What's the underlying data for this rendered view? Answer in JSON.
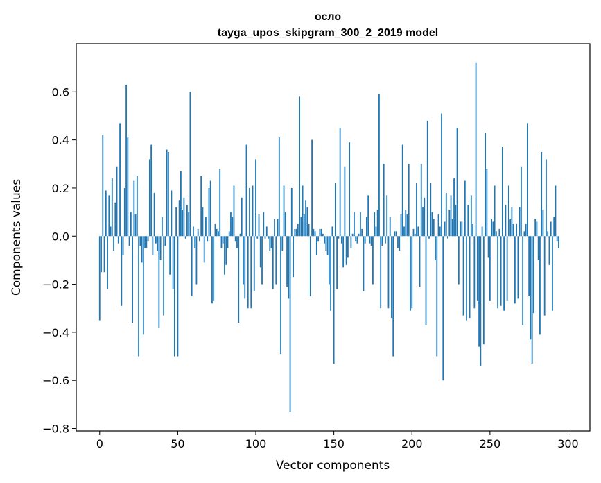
{
  "chart_data": {
    "type": "bar",
    "title_line1": "осло",
    "title_line2": "tayga_upos_skipgram_300_2_2019 model",
    "xlabel": "Vector components",
    "ylabel": "Components values",
    "xlim": [
      -15,
      314
    ],
    "ylim": [
      -0.81,
      0.8
    ],
    "xticks": [
      0,
      50,
      100,
      150,
      200,
      250,
      300
    ],
    "yticks": [
      -0.8,
      -0.6,
      -0.4,
      -0.2,
      0.0,
      0.2,
      0.4,
      0.6
    ],
    "xtick_labels": [
      "0",
      "50",
      "100",
      "150",
      "200",
      "250",
      "300"
    ],
    "ytick_labels": [
      "−0.8",
      "−0.6",
      "−0.4",
      "−0.2",
      "0.0",
      "0.2",
      "0.4",
      "0.6"
    ],
    "bar_color": "#1f77b4",
    "values": [
      -0.35,
      -0.15,
      0.42,
      -0.15,
      0.19,
      -0.22,
      0.17,
      0.04,
      0.24,
      -0.06,
      0.14,
      0.29,
      -0.03,
      0.47,
      -0.29,
      -0.08,
      0.2,
      0.63,
      0.41,
      -0.04,
      0.1,
      -0.36,
      0.23,
      0.09,
      0.25,
      -0.5,
      -0.04,
      -0.11,
      -0.41,
      -0.05,
      -0.05,
      -0.02,
      0.32,
      0.38,
      -0.08,
      0.18,
      -0.03,
      -0.06,
      -0.38,
      -0.1,
      0.08,
      -0.33,
      -0.04,
      0.36,
      0.35,
      -0.16,
      0.19,
      -0.22,
      -0.5,
      0.12,
      -0.5,
      0.15,
      0.27,
      0.11,
      0.16,
      -0.01,
      0.13,
      0.1,
      0.6,
      -0.25,
      0.04,
      -0.05,
      -0.2,
      0.03,
      -0.02,
      0.25,
      0.12,
      -0.11,
      0.08,
      -0.02,
      0.2,
      0.23,
      -0.28,
      -0.27,
      0.05,
      0.03,
      0.02,
      0.28,
      -0.05,
      -0.03,
      -0.16,
      -0.12,
      -0.05,
      0.02,
      0.1,
      0.08,
      0.21,
      -0.02,
      -0.05,
      -0.36,
      0.01,
      0.16,
      -0.2,
      -0.26,
      0.38,
      -0.3,
      0.2,
      -0.3,
      0.21,
      -0.23,
      0.32,
      -0.01,
      0.09,
      -0.13,
      -0.2,
      0.1,
      -0.01,
      0.04,
      -0.01,
      -0.06,
      -0.05,
      -0.22,
      0.07,
      -0.2,
      0.07,
      0.41,
      -0.49,
      -0.06,
      0.21,
      0.1,
      -0.21,
      -0.26,
      -0.73,
      0.2,
      -0.17,
      0.03,
      0.03,
      0.05,
      0.58,
      0.08,
      0.21,
      0.09,
      0.15,
      0.12,
      0.05,
      -0.25,
      0.4,
      0.03,
      0.02,
      -0.08,
      -0.02,
      0.03,
      0.03,
      0.01,
      -0.03,
      -0.06,
      -0.08,
      -0.2,
      -0.31,
      0.04,
      -0.53,
      0.22,
      -0.22,
      -0.01,
      0.45,
      -0.03,
      -0.13,
      0.29,
      -0.12,
      -0.09,
      0.39,
      -0.05,
      0.01,
      0.1,
      -0.02,
      -0.03,
      0.01,
      0.1,
      0.03,
      -0.23,
      -0.03,
      0.08,
      0.17,
      -0.03,
      -0.04,
      -0.2,
      0.1,
      0.04,
      0.11,
      0.59,
      -0.3,
      -0.04,
      0.3,
      -0.03,
      0.17,
      -0.3,
      0.08,
      -0.34,
      -0.5,
      0.02,
      0.02,
      -0.05,
      -0.06,
      0.09,
      0.38,
      0.04,
      0.11,
      0.09,
      0.3,
      -0.31,
      -0.3,
      0.03,
      0.01,
      0.22,
      0.04,
      -0.21,
      0.3,
      0.12,
      0.16,
      -0.37,
      0.48,
      -0.01,
      0.22,
      0.1,
      0.07,
      -0.1,
      -0.5,
      0.09,
      0.04,
      0.51,
      -0.6,
      0.06,
      0.18,
      -0.01,
      0.11,
      0.17,
      0.07,
      0.24,
      0.13,
      0.45,
      -0.2,
      0.06,
      0.06,
      -0.33,
      0.23,
      -0.35,
      0.13,
      -0.34,
      0.17,
      0.05,
      -0.3,
      0.72,
      -0.27,
      -0.46,
      -0.54,
      0.04,
      -0.45,
      0.43,
      0.28,
      -0.09,
      -0.27,
      0.07,
      0.06,
      0.21,
      0.02,
      -0.3,
      0.03,
      -0.29,
      0.37,
      -0.31,
      0.13,
      -0.27,
      0.21,
      0.07,
      0.12,
      0.05,
      -0.28,
      0.05,
      -0.26,
      0.12,
      0.29,
      -0.37,
      0.02,
      0.05,
      0.47,
      -0.25,
      -0.43,
      -0.53,
      -0.32,
      0.07,
      0.06,
      -0.1,
      -0.41,
      0.35,
      0.11,
      -0.33,
      0.32,
      0.02,
      -0.12,
      0.06,
      -0.31,
      0.08,
      0.21,
      -0.02,
      -0.05
    ]
  }
}
